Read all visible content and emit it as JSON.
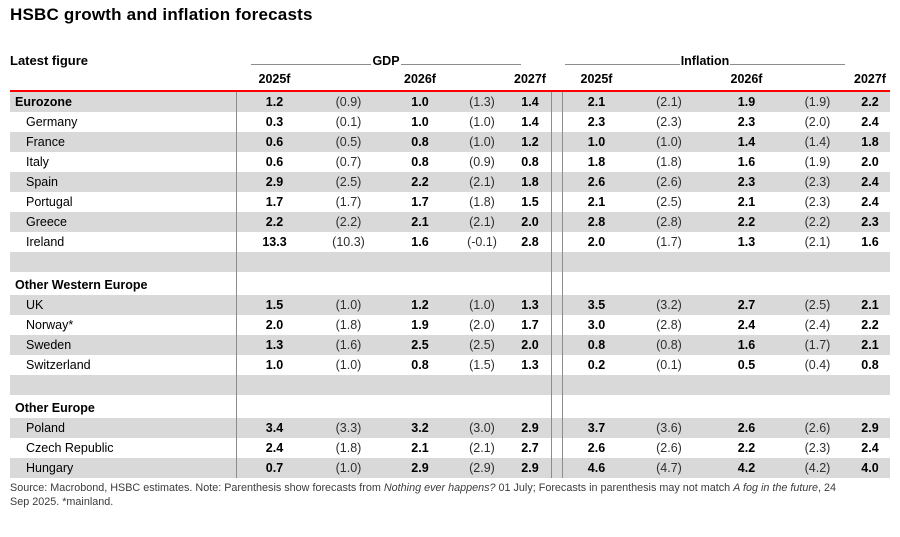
{
  "title": "HSBC growth and inflation forecasts",
  "table": {
    "corner_label": "Latest figure",
    "group_headers": {
      "gdp": "GDP",
      "inflation": "Inflation"
    },
    "years": [
      "2025f",
      "2026f",
      "2027f"
    ],
    "rows": [
      {
        "type": "region",
        "label": "Eurozone",
        "gdp": [
          "1.2",
          "(0.9)",
          "1.0",
          "(1.3)",
          "1.4"
        ],
        "inflation": [
          "2.1",
          "(2.1)",
          "1.9",
          "(1.9)",
          "2.2"
        ]
      },
      {
        "type": "country",
        "label": "Germany",
        "gdp": [
          "0.3",
          "(0.1)",
          "1.0",
          "(1.0)",
          "1.4"
        ],
        "inflation": [
          "2.3",
          "(2.3)",
          "2.3",
          "(2.0)",
          "2.4"
        ]
      },
      {
        "type": "country",
        "label": "France",
        "gdp": [
          "0.6",
          "(0.5)",
          "0.8",
          "(1.0)",
          "1.2"
        ],
        "inflation": [
          "1.0",
          "(1.0)",
          "1.4",
          "(1.4)",
          "1.8"
        ]
      },
      {
        "type": "country",
        "label": "Italy",
        "gdp": [
          "0.6",
          "(0.7)",
          "0.8",
          "(0.9)",
          "0.8"
        ],
        "inflation": [
          "1.8",
          "(1.8)",
          "1.6",
          "(1.9)",
          "2.0"
        ]
      },
      {
        "type": "country",
        "label": "Spain",
        "gdp": [
          "2.9",
          "(2.5)",
          "2.2",
          "(2.1)",
          "1.8"
        ],
        "inflation": [
          "2.6",
          "(2.6)",
          "2.3",
          "(2.3)",
          "2.4"
        ]
      },
      {
        "type": "country",
        "label": "Portugal",
        "gdp": [
          "1.7",
          "(1.7)",
          "1.7",
          "(1.8)",
          "1.5"
        ],
        "inflation": [
          "2.1",
          "(2.5)",
          "2.1",
          "(2.3)",
          "2.4"
        ]
      },
      {
        "type": "country",
        "label": "Greece",
        "gdp": [
          "2.2",
          "(2.2)",
          "2.1",
          "(2.1)",
          "2.0"
        ],
        "inflation": [
          "2.8",
          "(2.8)",
          "2.2",
          "(2.2)",
          "2.3"
        ]
      },
      {
        "type": "country",
        "label": "Ireland",
        "gdp": [
          "13.3",
          "(10.3)",
          "1.6",
          "(-0.1)",
          "2.8"
        ],
        "inflation": [
          "2.0",
          "(1.7)",
          "1.3",
          "(2.1)",
          "1.6"
        ]
      },
      {
        "type": "spacer",
        "label": ""
      },
      {
        "type": "section",
        "label": "Other Western Europe"
      },
      {
        "type": "country",
        "label": "UK",
        "gdp": [
          "1.5",
          "(1.0)",
          "1.2",
          "(1.0)",
          "1.3"
        ],
        "inflation": [
          "3.5",
          "(3.2)",
          "2.7",
          "(2.5)",
          "2.1"
        ]
      },
      {
        "type": "country",
        "label": "Norway*",
        "gdp": [
          "2.0",
          "(1.8)",
          "1.9",
          "(2.0)",
          "1.7"
        ],
        "inflation": [
          "3.0",
          "(2.8)",
          "2.4",
          "(2.4)",
          "2.2"
        ]
      },
      {
        "type": "country",
        "label": "Sweden",
        "gdp": [
          "1.3",
          "(1.6)",
          "2.5",
          "(2.5)",
          "2.0"
        ],
        "inflation": [
          "0.8",
          "(0.8)",
          "1.6",
          "(1.7)",
          "2.1"
        ]
      },
      {
        "type": "country",
        "label": "Switzerland",
        "gdp": [
          "1.0",
          "(1.0)",
          "0.8",
          "(1.5)",
          "1.3"
        ],
        "inflation": [
          "0.2",
          "(0.1)",
          "0.5",
          "(0.4)",
          "0.8"
        ]
      },
      {
        "type": "spacer",
        "label": ""
      },
      {
        "type": "section",
        "label": "Other Europe"
      },
      {
        "type": "country",
        "label": "Poland",
        "gdp": [
          "3.4",
          "(3.3)",
          "3.2",
          "(3.0)",
          "2.9"
        ],
        "inflation": [
          "3.7",
          "(3.6)",
          "2.6",
          "(2.6)",
          "2.9"
        ]
      },
      {
        "type": "country",
        "label": "Czech Republic",
        "gdp": [
          "2.4",
          "(1.8)",
          "2.1",
          "(2.1)",
          "2.7"
        ],
        "inflation": [
          "2.6",
          "(2.6)",
          "2.2",
          "(2.3)",
          "2.4"
        ]
      },
      {
        "type": "country",
        "label": "Hungary",
        "gdp": [
          "0.7",
          "(1.0)",
          "2.9",
          "(2.9)",
          "2.9"
        ],
        "inflation": [
          "4.6",
          "(4.7)",
          "4.2",
          "(4.2)",
          "4.0"
        ]
      }
    ]
  },
  "footnote": {
    "lines": [
      {
        "segments": [
          {
            "text": "Source: Macrobond, HSBC estimates. Note: Parenthesis show forecasts from ",
            "italic": false
          },
          {
            "text": "Nothing ever happens?",
            "italic": true
          },
          {
            "text": " 01 July; Forecasts in parenthesis may not match ",
            "italic": false
          },
          {
            "text": "A fog in the future",
            "italic": true
          },
          {
            "text": ", 24",
            "italic": false
          }
        ]
      },
      {
        "segments": [
          {
            "text": "Sep 2025. *mainland.",
            "italic": false
          }
        ]
      }
    ]
  },
  "colors": {
    "stripe": "#d9d9d9",
    "header_rule": "#ff0000",
    "grid_line": "#8c8c8c"
  }
}
